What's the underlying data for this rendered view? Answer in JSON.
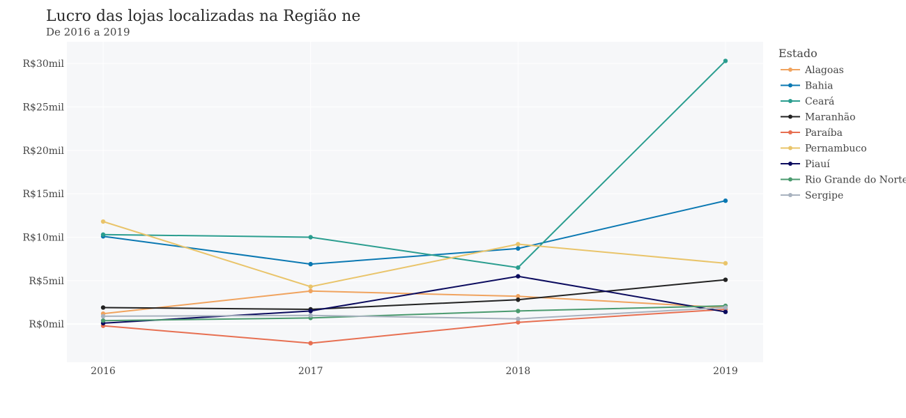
{
  "chart_data": {
    "type": "line",
    "title": "Lucro das lojas localizadas na Região ne",
    "subtitle": "De 2016 a 2019",
    "xlabel": "",
    "ylabel": "",
    "categories": [
      "2016",
      "2017",
      "2018",
      "2019"
    ],
    "ylim": [
      -4400,
      32500
    ],
    "y_ticks": [
      {
        "value": 0,
        "label": "R$0mil"
      },
      {
        "value": 5000,
        "label": "R$5mil"
      },
      {
        "value": 10000,
        "label": "R$10mil"
      },
      {
        "value": 15000,
        "label": "R$15mil"
      },
      {
        "value": 20000,
        "label": "R$20mil"
      },
      {
        "value": 25000,
        "label": "R$25mil"
      },
      {
        "value": 30000,
        "label": "R$30mil"
      }
    ],
    "grid": true,
    "legend_title": "Estado",
    "legend_position": "right",
    "series": [
      {
        "name": "Alagoas",
        "color": "#F0A35E",
        "values": [
          1200,
          3800,
          3200,
          1900
        ]
      },
      {
        "name": "Bahia",
        "color": "#0A78B2",
        "values": [
          10100,
          6900,
          8700,
          14200
        ]
      },
      {
        "name": "Ceará",
        "color": "#2A9D8F",
        "values": [
          10300,
          10000,
          6500,
          30300
        ]
      },
      {
        "name": "Maranhão",
        "color": "#222222",
        "values": [
          1900,
          1700,
          2800,
          5100
        ]
      },
      {
        "name": "Paraíba",
        "color": "#E76F51",
        "values": [
          -200,
          -2200,
          200,
          1700
        ]
      },
      {
        "name": "Pernambuco",
        "color": "#E9C46A",
        "values": [
          11800,
          4300,
          9200,
          7000
        ]
      },
      {
        "name": "Piauí",
        "color": "#0B0B5E",
        "values": [
          100,
          1500,
          5500,
          1400
        ]
      },
      {
        "name": "Rio Grande do Norte",
        "color": "#4A9A6E",
        "values": [
          400,
          700,
          1500,
          2100
        ]
      },
      {
        "name": "Sergipe",
        "color": "#A8B2BF",
        "values": [
          900,
          1000,
          600,
          1900
        ]
      }
    ]
  }
}
